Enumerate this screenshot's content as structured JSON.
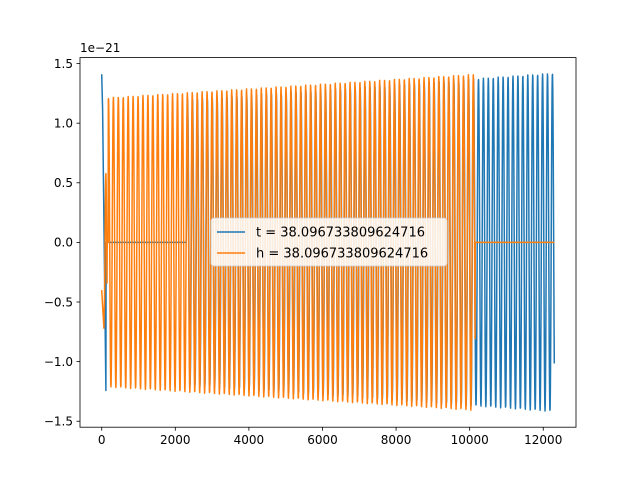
{
  "chart_data": {
    "type": "line",
    "title": "",
    "xlabel": "",
    "ylabel": "",
    "offset_text": "1e−21",
    "xlim": [
      -590,
      12890
    ],
    "ylim": [
      -1.55,
      1.55
    ],
    "x_ticks": [
      0,
      2000,
      4000,
      6000,
      8000,
      10000,
      12000
    ],
    "x_tick_labels": [
      "0",
      "2000",
      "4000",
      "6000",
      "8000",
      "10000",
      "12000"
    ],
    "y_ticks": [
      -1.5,
      -1.0,
      -0.5,
      0.0,
      0.5,
      1.0,
      1.5
    ],
    "y_tick_labels": [
      "−1.5",
      "−1.0",
      "−0.5",
      "0.0",
      "0.5",
      "1.0",
      "1.5"
    ],
    "grid": false,
    "legend_position": "center",
    "series": [
      {
        "name": "t = 38.096733809624716",
        "color": "#1f77b4",
        "start_x": 0,
        "end_x": 12300,
        "start_amplitude": 1.41,
        "mid_amplitude": 1.2,
        "mid_x": 2300,
        "end_amplitude": 1.42,
        "period": 134,
        "inspiral_end_x": 120
      },
      {
        "name": "h = 38.096733809624716",
        "color": "#ff7f0e",
        "start_x": 0,
        "end_x": 12300,
        "active_start_x": 2300,
        "active_end_x": 10150,
        "start_amplitude": 1.21,
        "end_amplitude": 1.41,
        "period": 134
      }
    ]
  }
}
